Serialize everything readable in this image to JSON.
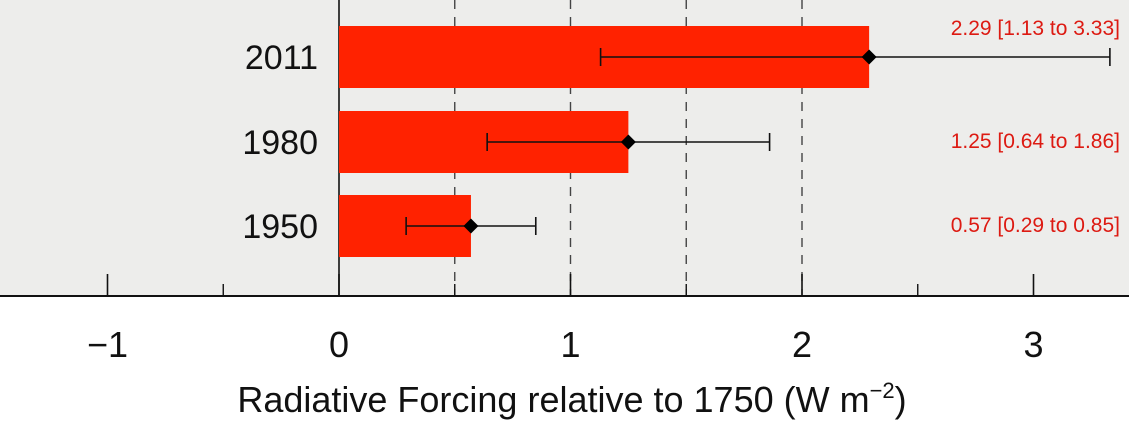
{
  "chart_data": {
    "type": "bar",
    "orientation": "horizontal",
    "categories": [
      "2011",
      "1980",
      "1950"
    ],
    "values": [
      2.29,
      1.25,
      0.57
    ],
    "ranges": [
      [
        1.13,
        3.33
      ],
      [
        0.64,
        1.86
      ],
      [
        0.29,
        0.85
      ]
    ],
    "data_labels": [
      "2.29 [1.13 to 3.33]",
      "1.25 [0.64 to 1.86]",
      "0.57 [0.29 to 0.85]"
    ],
    "xlim": [
      -1.5,
      3.35
    ],
    "x_ticks": [
      -1,
      0,
      1,
      2,
      3
    ],
    "x_tick_labels": [
      "−1",
      "0",
      "1",
      "2",
      "3"
    ],
    "x_minor_ticks": [
      -0.5,
      0.5,
      1.5,
      2.5
    ],
    "gridlines_dashed_at": [
      0.5,
      1,
      1.5,
      2
    ],
    "xlabel": {
      "main": "Radiative Forcing relative to 1750 (W m",
      "superscript": "−2",
      "closing": ")"
    },
    "title": "",
    "legend": "none",
    "colors": {
      "bar": "#ff2200",
      "data_label": "#dd1a12",
      "plot_background": "#ededeb",
      "marker": "#000000"
    }
  }
}
